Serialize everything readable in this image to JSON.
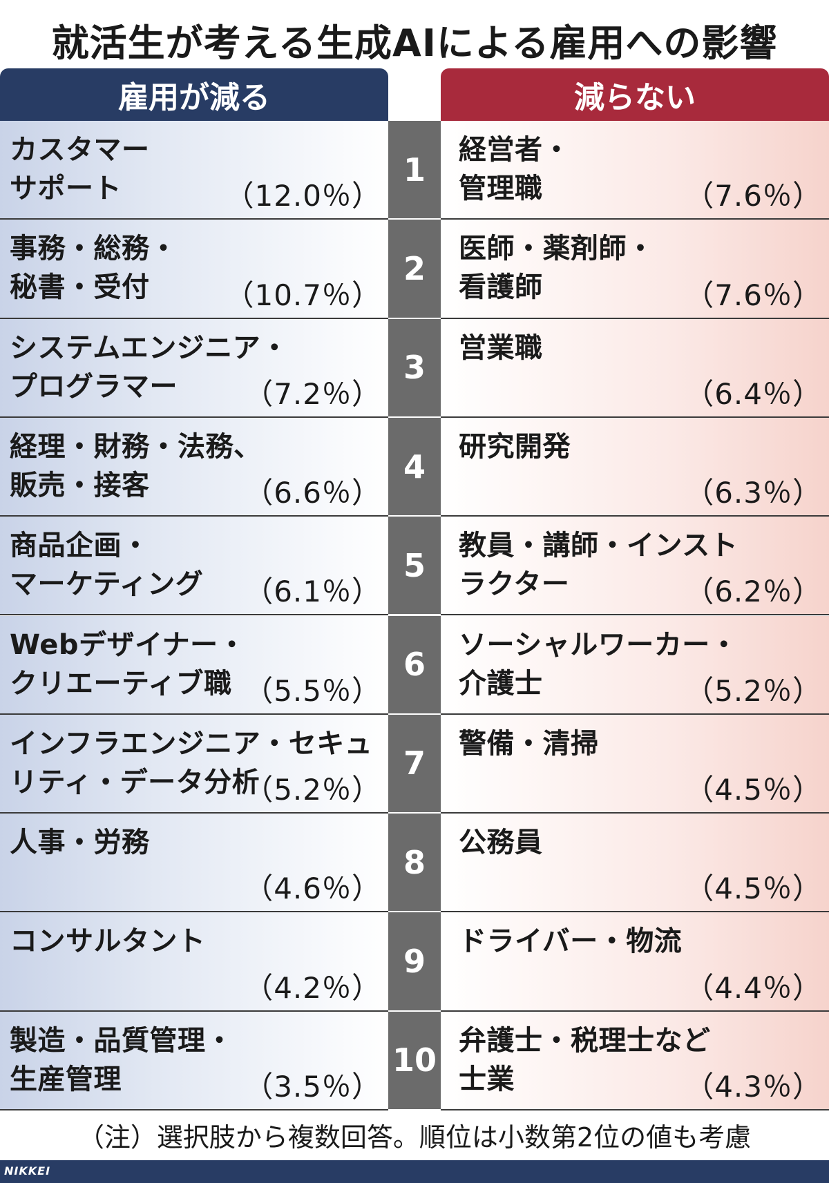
{
  "title": "就活生が考える生成AIによる雇用への影響",
  "header": {
    "left": "雇用が減る",
    "right": "減らない"
  },
  "colors": {
    "left_header": "#283c64",
    "right_header": "#a82a3c",
    "rank_bg": "#6b6b6b"
  },
  "chart_data": {
    "type": "table",
    "title": "就活生が考える生成AIによる雇用への影響",
    "columns": [
      "雇用が減る",
      "減らない"
    ],
    "rows": [
      {
        "rank": "1",
        "left_label": "カスタマー\nサポート",
        "left_pct": "（12.0％）",
        "left_value": 12.0,
        "right_label": "経営者・\n管理職",
        "right_pct": "（7.6％）",
        "right_value": 7.6
      },
      {
        "rank": "2",
        "left_label": "事務・総務・\n秘書・受付",
        "left_pct": "（10.7％）",
        "left_value": 10.7,
        "right_label": "医師・薬剤師・\n看護師",
        "right_pct": "（7.6％）",
        "right_value": 7.6
      },
      {
        "rank": "3",
        "left_label": "システムエンジニア・\nプログラマー",
        "left_pct": "（7.2％）",
        "left_value": 7.2,
        "right_label": "営業職",
        "right_pct": "（6.4％）",
        "right_value": 6.4
      },
      {
        "rank": "4",
        "left_label": "経理・財務・法務、\n販売・接客",
        "left_pct": "（6.6％）",
        "left_value": 6.6,
        "right_label": "研究開発",
        "right_pct": "（6.3％）",
        "right_value": 6.3
      },
      {
        "rank": "5",
        "left_label": "商品企画・\nマーケティング",
        "left_pct": "（6.1％）",
        "left_value": 6.1,
        "right_label": "教員・講師・インスト\nラクター",
        "right_pct": "（6.2％）",
        "right_value": 6.2
      },
      {
        "rank": "6",
        "left_label": "Webデザイナー・\nクリエーティブ職",
        "left_pct": "（5.5％）",
        "left_value": 5.5,
        "right_label": "ソーシャルワーカー・\n介護士",
        "right_pct": "（5.2％）",
        "right_value": 5.2
      },
      {
        "rank": "7",
        "left_label": "インフラエンジニア・セキュ\nリティ・データ分析",
        "left_pct": "（5.2％）",
        "left_value": 5.2,
        "right_label": "警備・清掃",
        "right_pct": "（4.5％）",
        "right_value": 4.5
      },
      {
        "rank": "8",
        "left_label": "人事・労務",
        "left_pct": "（4.6％）",
        "left_value": 4.6,
        "right_label": "公務員",
        "right_pct": "（4.5％）",
        "right_value": 4.5
      },
      {
        "rank": "9",
        "left_label": "コンサルタント",
        "left_pct": "（4.2％）",
        "left_value": 4.2,
        "right_label": "ドライバー・物流",
        "right_pct": "（4.4％）",
        "right_value": 4.4
      },
      {
        "rank": "10",
        "left_label": "製造・品質管理・\n生産管理",
        "left_pct": "（3.5％）",
        "left_value": 3.5,
        "right_label": "弁護士・税理士など\n士業",
        "right_pct": "（4.3％）",
        "right_value": 4.3
      }
    ]
  },
  "note": "（注）選択肢から複数回答。順位は小数第2位の値も考慮",
  "brand": "NIKKEI"
}
